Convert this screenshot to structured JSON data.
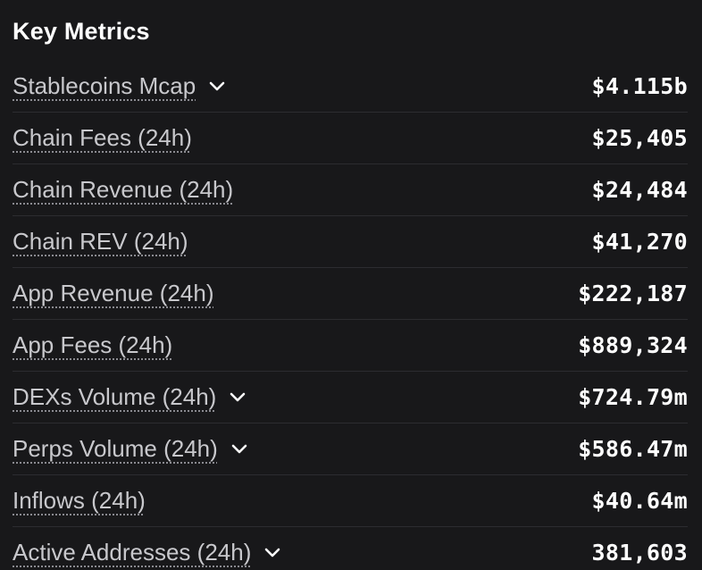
{
  "panel": {
    "title": "Key Metrics",
    "metrics": [
      {
        "label": "Stablecoins Mcap",
        "value": "$4.115b",
        "expandable": true
      },
      {
        "label": "Chain Fees (24h)",
        "value": "$25,405",
        "expandable": false
      },
      {
        "label": "Chain Revenue (24h)",
        "value": "$24,484",
        "expandable": false
      },
      {
        "label": "Chain REV (24h)",
        "value": "$41,270",
        "expandable": false
      },
      {
        "label": "App Revenue (24h)",
        "value": "$222,187",
        "expandable": false
      },
      {
        "label": "App Fees (24h)",
        "value": "$889,324",
        "expandable": false
      },
      {
        "label": "DEXs Volume (24h)",
        "value": "$724.79m",
        "expandable": true
      },
      {
        "label": "Perps Volume (24h)",
        "value": "$586.47m",
        "expandable": true
      },
      {
        "label": "Inflows (24h)",
        "value": "$40.64m",
        "expandable": false
      },
      {
        "label": "Active Addresses (24h)",
        "value": "381,603",
        "expandable": true
      }
    ]
  },
  "icons": {
    "expand": "chevron-down-icon"
  },
  "colors": {
    "background": "#18181a",
    "label": "#c8c8cc",
    "value": "#ffffff",
    "divider": "#2c2c30"
  }
}
